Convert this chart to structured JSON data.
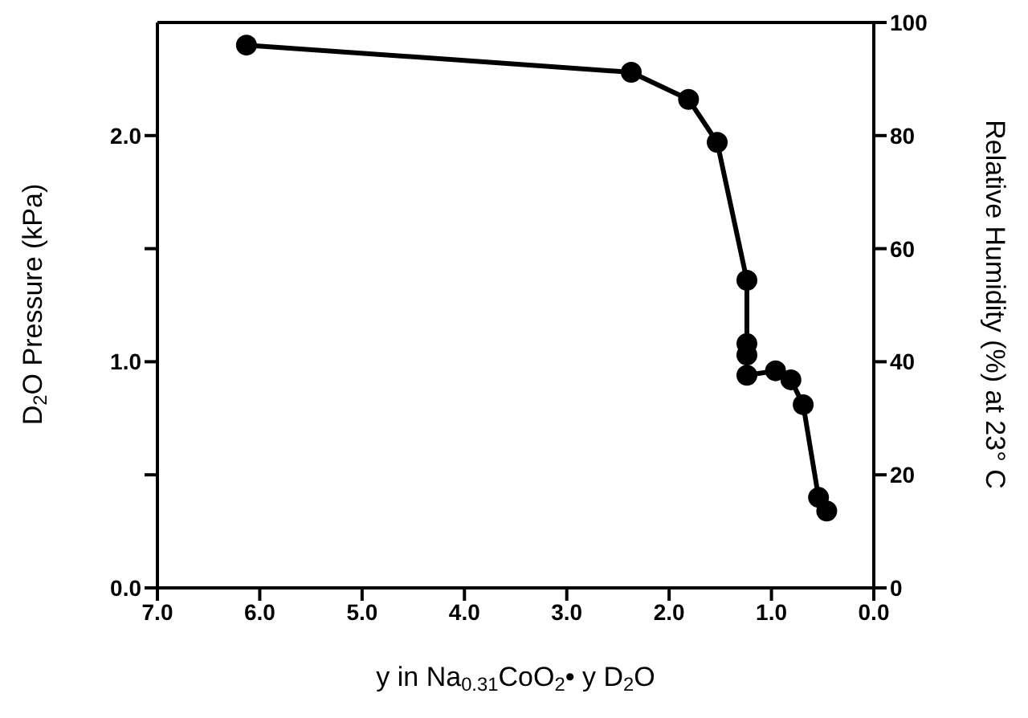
{
  "chart_data": {
    "type": "line",
    "xlabel": "y in Na$_{0.31}$CoO$_{2}$• y D$_{2}$O",
    "ylabel": "D$_{2}$O Pressure (kPa)",
    "y2label": "Relative Humidity (%) at 23° C",
    "x": [
      6.13,
      2.37,
      1.81,
      1.53,
      1.24,
      1.24,
      1.24,
      1.24,
      0.96,
      0.81,
      0.69,
      0.54,
      0.46
    ],
    "series": [
      {
        "color": "#000000",
        "values": [
          2.4,
          2.28,
          2.16,
          1.97,
          1.36,
          1.08,
          1.03,
          0.94,
          0.96,
          0.92,
          0.81,
          0.4,
          0.34
        ]
      }
    ],
    "xlim": [
      7,
      0
    ],
    "xticks": [
      {
        "value": 7,
        "label": "7.0"
      },
      {
        "value": 6,
        "label": "6.0"
      },
      {
        "value": 5,
        "label": "5.0"
      },
      {
        "value": 4,
        "label": "4.0"
      },
      {
        "value": 3,
        "label": "3.0"
      },
      {
        "value": 2,
        "label": "2.0"
      },
      {
        "value": 1,
        "label": "1.0"
      },
      {
        "value": 0,
        "label": "0.0"
      }
    ],
    "ylim": [
      0,
      2.5
    ],
    "yticks": [
      {
        "value": 0,
        "label": "0.0"
      },
      {
        "value": 0.5,
        "label": null
      },
      {
        "value": 1,
        "label": "1.0"
      },
      {
        "value": 1.5,
        "label": null
      },
      {
        "value": 2,
        "label": "2.0"
      }
    ],
    "y2lim": [
      0,
      100
    ],
    "y2ticks": [
      0,
      20,
      40,
      60,
      80,
      100
    ],
    "grid": false,
    "marker": "circle",
    "line_style": "solid"
  }
}
